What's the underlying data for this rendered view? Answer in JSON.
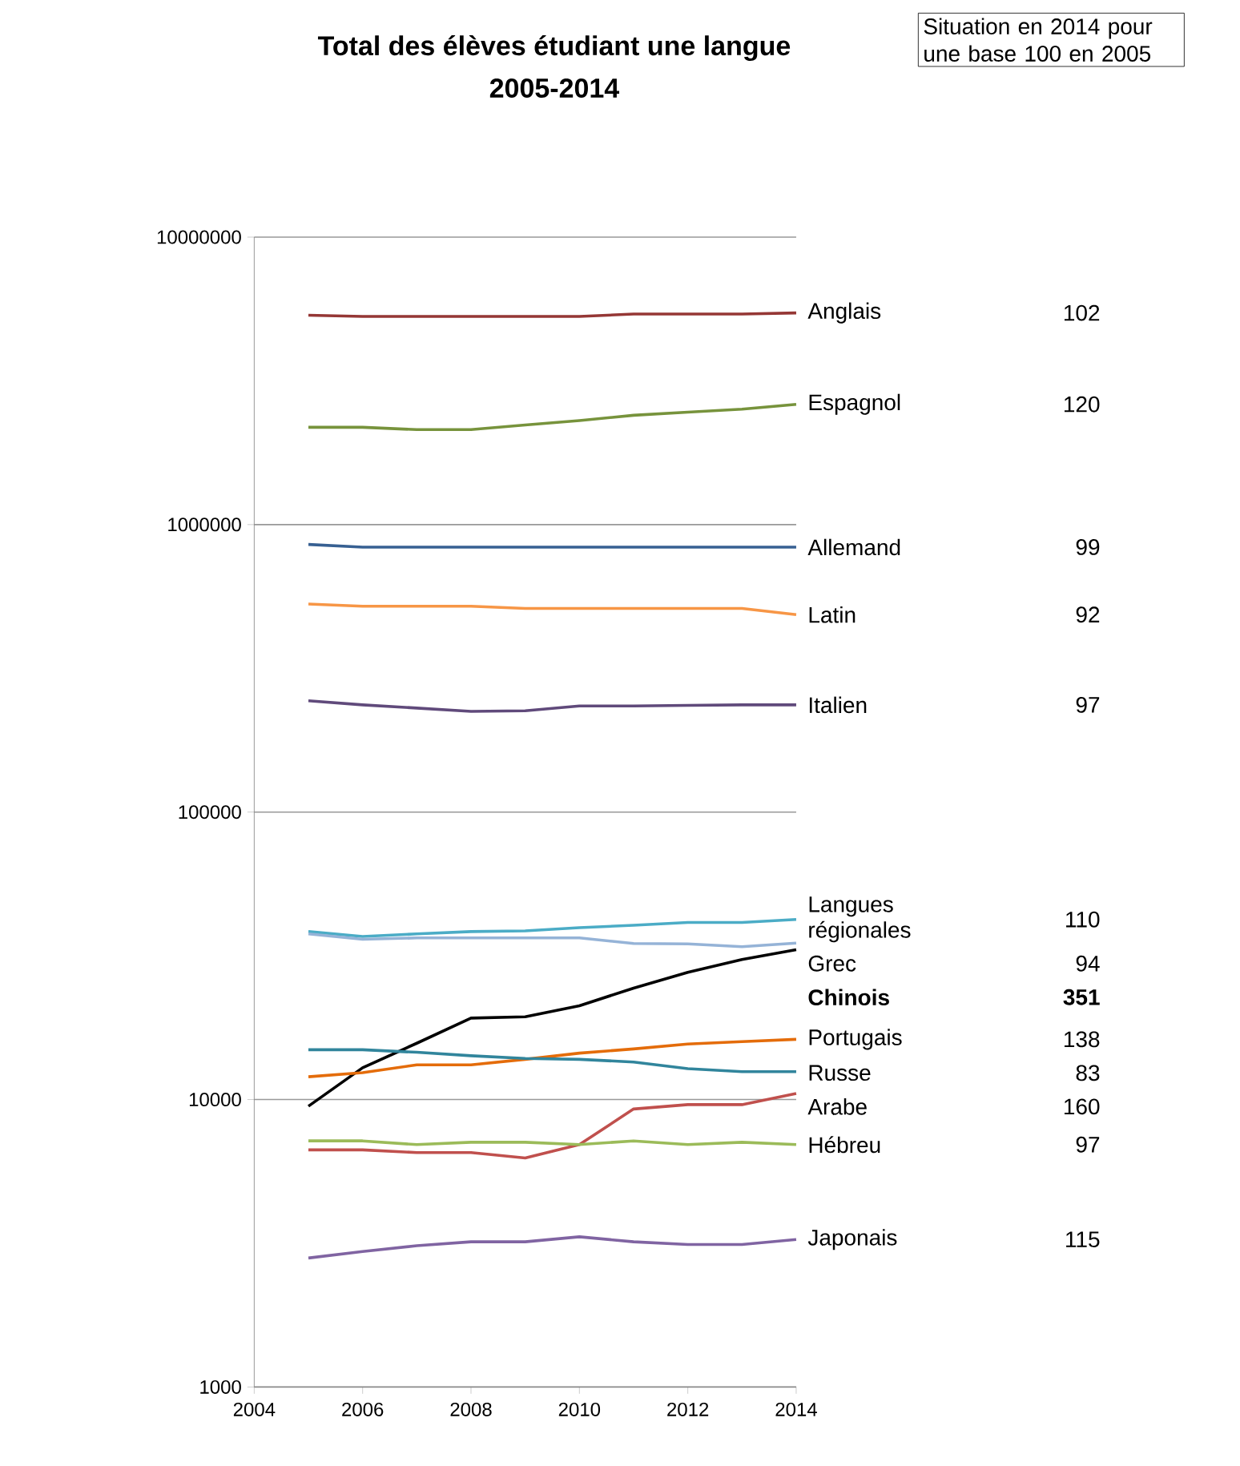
{
  "chart_data": {
    "type": "line",
    "title": "Total des élèves étudiant une langue",
    "subtitle": "2005-2014",
    "x": [
      2005,
      2006,
      2007,
      2008,
      2009,
      2010,
      2011,
      2012,
      2013,
      2014
    ],
    "xlim": [
      2004,
      2014
    ],
    "xticks": [
      2004,
      2006,
      2008,
      2010,
      2012,
      2014
    ],
    "log": "y",
    "ylim": [
      1000,
      10000000
    ],
    "yticks": [
      1000,
      10000,
      100000,
      1000000,
      10000000
    ],
    "grid": "y",
    "marker": "none",
    "line_style": "solid",
    "series": [
      {
        "name": "Anglais",
        "color": "#953735",
        "values": [
          5350000,
          5300000,
          5300000,
          5300000,
          5300000,
          5300000,
          5400000,
          5400000,
          5400000,
          5450000
        ]
      },
      {
        "name": "Espagnol",
        "color": "#77933c",
        "values": [
          2180000,
          2180000,
          2140000,
          2140000,
          2220000,
          2300000,
          2400000,
          2460000,
          2520000,
          2620000
        ]
      },
      {
        "name": "Allemand",
        "color": "#376092",
        "values": [
          853000,
          835000,
          835000,
          835000,
          835000,
          835000,
          835000,
          835000,
          835000,
          835000
        ]
      },
      {
        "name": "Latin",
        "color": "#f79646",
        "values": [
          529000,
          520000,
          520000,
          520000,
          511000,
          511000,
          511000,
          511000,
          511000,
          486000
        ]
      },
      {
        "name": "Italien",
        "color": "#604a7b",
        "values": [
          244000,
          236000,
          230000,
          224000,
          225000,
          234000,
          234000,
          235000,
          236000,
          236000
        ]
      },
      {
        "name": "Langues régionales",
        "color": "#4bacc6",
        "values": [
          38400,
          36900,
          37700,
          38400,
          38600,
          39600,
          40400,
          41300,
          41300,
          42300
        ]
      },
      {
        "name": "Grec",
        "color": "#95b3d7",
        "values": [
          37700,
          36100,
          36500,
          36500,
          36500,
          36500,
          34900,
          34800,
          34000,
          35000
        ]
      },
      {
        "name": "**Chinois**",
        "color": "#000000",
        "values": [
          9480,
          12900,
          15700,
          19200,
          19400,
          21200,
          24400,
          27700,
          30700,
          33200
        ]
      },
      {
        "name": "Portugais",
        "color": "#e46c0a",
        "values": [
          12000,
          12400,
          13200,
          13200,
          13800,
          14500,
          15000,
          15600,
          15900,
          16200
        ]
      },
      {
        "name": "Russe",
        "color": "#31859c",
        "values": [
          14900,
          14900,
          14600,
          14200,
          13900,
          13800,
          13500,
          12800,
          12500,
          12500
        ]
      },
      {
        "name": "Arabe",
        "color": "#c0504d",
        "values": [
          6680,
          6680,
          6540,
          6540,
          6260,
          6970,
          9270,
          9600,
          9600,
          10500
        ]
      },
      {
        "name": "Hébreu",
        "color": "#9bbb59",
        "values": [
          7180,
          7180,
          6970,
          7100,
          7100,
          6970,
          7180,
          6970,
          7100,
          6970
        ]
      },
      {
        "name": "Japonais",
        "color": "#8064a2",
        "values": [
          2810,
          2960,
          3100,
          3200,
          3200,
          3330,
          3200,
          3130,
          3130,
          3260
        ]
      }
    ],
    "annotations": [
      "Situation en 2014 pour une base 100 en 2005",
      "102",
      "120",
      "99",
      "92",
      "97",
      "110",
      "94",
      "**351**",
      "138",
      "83",
      "160",
      "97",
      "115"
    ]
  }
}
